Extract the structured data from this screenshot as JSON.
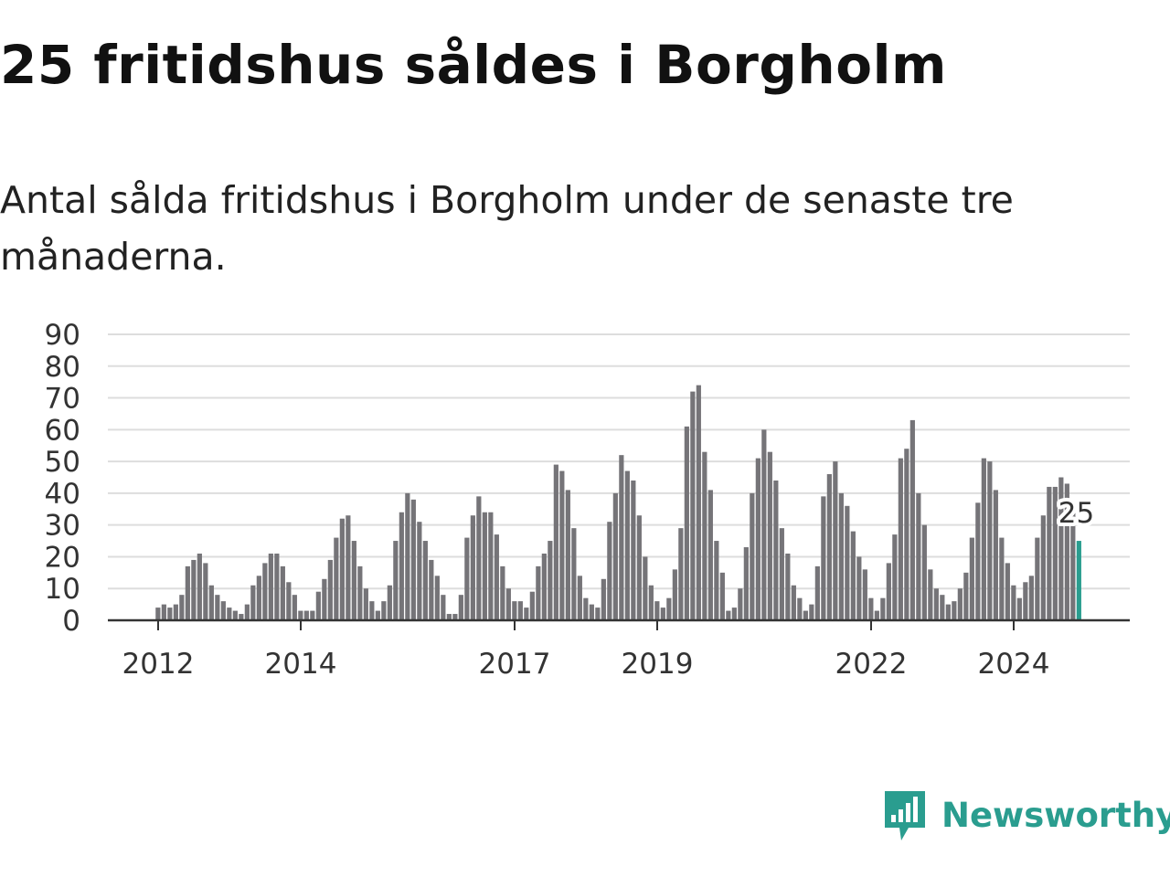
{
  "title": "25 fritidshus såldes i Borgholm",
  "subtitle": "Antal sålda fritidshus i Borgholm under de senaste tre månaderna.",
  "brand": {
    "name": "Newsworthy",
    "icon": "newsworthy-logo-icon",
    "color": "#2a9d8f"
  },
  "colors": {
    "bar": "#757478",
    "highlight": "#2a9d8f",
    "grid": "#dddddd",
    "axis": "#333333"
  },
  "chart_data": {
    "type": "bar",
    "title": "Antal sålda fritidshus i Borgholm under de senaste tre månaderna.",
    "xlabel": "",
    "ylabel": "",
    "ylim": [
      0,
      90
    ],
    "yticks": [
      0,
      10,
      20,
      30,
      40,
      50,
      60,
      70,
      80,
      90
    ],
    "xtick_labels": [
      "2012",
      "2014",
      "2017",
      "2019",
      "2022",
      "2024"
    ],
    "grid": true,
    "start_period": "2012-01",
    "period": "month",
    "values": [
      4,
      5,
      4,
      5,
      8,
      17,
      19,
      21,
      18,
      11,
      8,
      6,
      4,
      3,
      2,
      5,
      11,
      14,
      18,
      21,
      21,
      17,
      12,
      8,
      3,
      3,
      3,
      9,
      13,
      19,
      26,
      32,
      33,
      25,
      17,
      10,
      6,
      3,
      6,
      11,
      25,
      34,
      40,
      38,
      31,
      25,
      19,
      14,
      8,
      2,
      2,
      8,
      26,
      33,
      39,
      34,
      34,
      27,
      17,
      10,
      6,
      6,
      4,
      9,
      17,
      21,
      25,
      49,
      47,
      41,
      29,
      14,
      7,
      5,
      4,
      13,
      31,
      40,
      52,
      47,
      44,
      33,
      20,
      11,
      6,
      4,
      7,
      16,
      29,
      61,
      72,
      74,
      53,
      41,
      25,
      15,
      3,
      4,
      10,
      23,
      40,
      51,
      60,
      53,
      44,
      29,
      21,
      11,
      7,
      3,
      5,
      17,
      39,
      46,
      50,
      40,
      36,
      28,
      20,
      16,
      7,
      3,
      7,
      18,
      27,
      51,
      54,
      63,
      40,
      30,
      16,
      10,
      8,
      5,
      6,
      10,
      15,
      26,
      37,
      51,
      50,
      41,
      26,
      18,
      11,
      7,
      12,
      14,
      26,
      33,
      42,
      42,
      45,
      43,
      34,
      25
    ],
    "highlight": {
      "label": "25",
      "value": 25
    }
  }
}
